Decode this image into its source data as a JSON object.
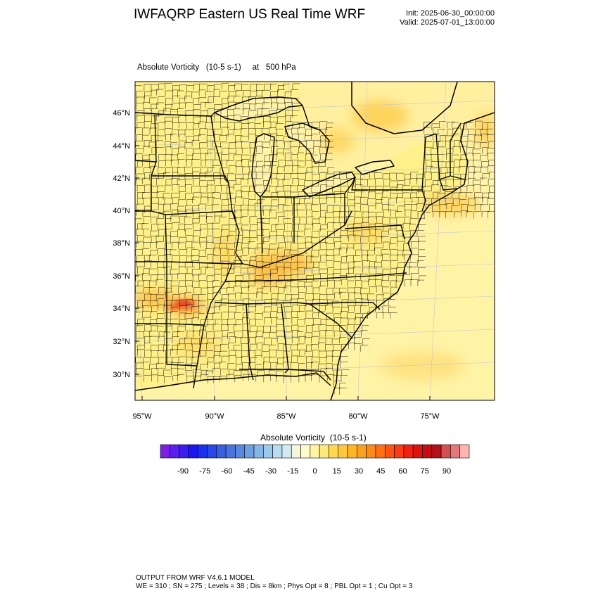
{
  "header": {
    "title": "IWFAQRP Eastern US Real Time WRF",
    "init": "Init: 2025-06-30_00:00:00",
    "valid": "Valid: 2025-07-01_13:00:00"
  },
  "field": {
    "name": "Absolute Vorticity",
    "units": "(10-5 s-1)",
    "level_text": "at   500 hPa"
  },
  "map": {
    "lon_range": [
      -96,
      -71
    ],
    "lat_range": [
      28.5,
      47.5
    ],
    "lat_labels": [
      "30°N",
      "32°N",
      "34°N",
      "36°N",
      "38°N",
      "40°N",
      "42°N",
      "44°N",
      "46°N"
    ],
    "lon_labels": [
      "95°W",
      "90°W",
      "85°W",
      "80°W",
      "75°W"
    ],
    "colors": {
      "land_base": "#fef189",
      "ocean_base": "#fff2a0",
      "state_lines": "#000000",
      "county_lines": "#000000",
      "hotspot": "#e8391c"
    }
  },
  "colorbar": {
    "title": "Absolute Vorticity  (10-5 s-1)",
    "tick_labels": [
      "-90",
      "-75",
      "-60",
      "-45",
      "-30",
      "-15",
      "0",
      "15",
      "30",
      "45",
      "60",
      "75",
      "90"
    ],
    "colors": [
      "#7b1fe8",
      "#5b20f0",
      "#3c1cf4",
      "#1c16f6",
      "#1a30f0",
      "#2848e8",
      "#3a5ee0",
      "#4a74dc",
      "#5a88dc",
      "#6ca0e0",
      "#86b6e6",
      "#9ccaea",
      "#b8dcf0",
      "#d2eaf4",
      "#f6f6d8",
      "#fffccc",
      "#fff4a0",
      "#ffe878",
      "#ffd850",
      "#ffc838",
      "#ffb426",
      "#ffa01c",
      "#ff8a14",
      "#ff7010",
      "#ff5410",
      "#ff3a0e",
      "#f2200c",
      "#e0100c",
      "#c80c10",
      "#b41018",
      "#d25050",
      "#e87878",
      "#ffb4b4"
    ]
  },
  "footer": {
    "line1": "OUTPUT FROM WRF V4.6.1 MODEL",
    "line2": "WE = 310 ; SN = 275 ; Levels = 38 ; Dis = 8km ; Phys Opt = 8 ; PBL Opt = 1 ; Cu Opt = 3"
  }
}
